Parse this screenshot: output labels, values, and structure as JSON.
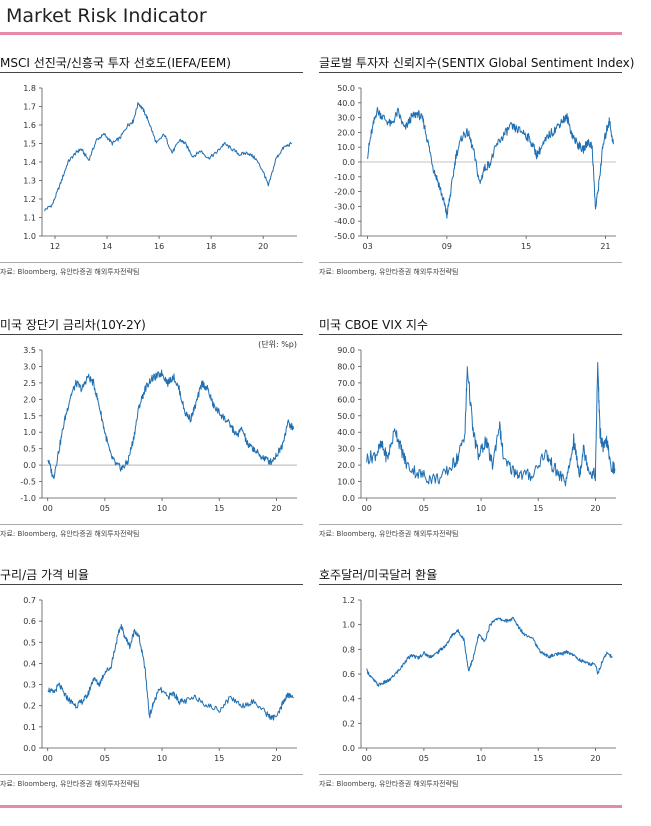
{
  "page": {
    "title": "Market Risk Indicator"
  },
  "colors": {
    "accent": "#e58aa8",
    "line": "#1f6fb2"
  },
  "panels": [
    {
      "title": "MSCI 선진국/신흥국  투자 선호도(IEFA/EEM)",
      "source": "자료: Bloomberg,  유안타증권 해외투자전략팀",
      "unit": ""
    },
    {
      "title": "글로벌 투자자 신뢰지수(SENTIX  Global Sentiment Index)",
      "source": "자료: Bloomberg,  유안타증권 해외투자전략팀",
      "unit": ""
    },
    {
      "title": "미국 장단기 금리차(10Y-2Y)",
      "source": "자료: Bloomberg,  유안타증권 해외투자전략팀",
      "unit": "(단위: %p)"
    },
    {
      "title": "미국 CBOE VIX 지수",
      "source": "자료: Bloomberg,  유안타증권 해외투자전략팀",
      "unit": ""
    },
    {
      "title": "구리/금 가격 비율",
      "source": "자료: Bloomberg,  유안타증권 해외투자전략팀",
      "unit": ""
    },
    {
      "title": "호주달러/미국달러  환율",
      "source": "자료: Bloomberg,  유안타증권 해외투자전략팀",
      "unit": ""
    }
  ],
  "chart_data": [
    {
      "type": "line",
      "xlim": [
        2011.5,
        2021.3
      ],
      "ylim": [
        1.0,
        1.8
      ],
      "yticks": [
        1.0,
        1.1,
        1.2,
        1.3,
        1.4,
        1.5,
        1.6,
        1.7,
        1.8
      ],
      "ytick_labels": [
        "1.0",
        "1.1",
        "1.2",
        "1.3",
        "1.4",
        "1.5",
        "1.6",
        "1.7",
        "1.8"
      ],
      "xticks": [
        2012,
        2014,
        2016,
        2018,
        2020
      ],
      "xtick_labels": [
        "12",
        "14",
        "16",
        "18",
        "20"
      ],
      "x": [
        2011.6,
        2011.9,
        2012.2,
        2012.5,
        2012.8,
        2013.0,
        2013.3,
        2013.6,
        2013.9,
        2014.2,
        2014.5,
        2014.8,
        2015.0,
        2015.2,
        2015.4,
        2015.6,
        2015.9,
        2016.2,
        2016.5,
        2016.8,
        2017.0,
        2017.3,
        2017.6,
        2017.9,
        2018.2,
        2018.5,
        2018.8,
        2019.1,
        2019.4,
        2019.7,
        2020.0,
        2020.2,
        2020.5,
        2020.8,
        2021.1
      ],
      "y": [
        1.14,
        1.17,
        1.28,
        1.4,
        1.45,
        1.47,
        1.41,
        1.52,
        1.55,
        1.5,
        1.53,
        1.6,
        1.62,
        1.72,
        1.68,
        1.62,
        1.5,
        1.55,
        1.45,
        1.52,
        1.5,
        1.43,
        1.46,
        1.42,
        1.45,
        1.5,
        1.47,
        1.44,
        1.45,
        1.42,
        1.35,
        1.27,
        1.42,
        1.48,
        1.5
      ]
    },
    {
      "type": "line",
      "xlim": [
        2002.5,
        2021.8
      ],
      "ylim": [
        -50,
        50
      ],
      "yticks": [
        50,
        40,
        30,
        20,
        10,
        0,
        -10,
        -20,
        -30,
        -40,
        -50
      ],
      "ytick_labels": [
        "50.0",
        "40.0",
        "30.0",
        "20.0",
        "10.0",
        "0.0",
        "-10.0",
        "-20.0",
        "-30.0",
        "-40.0",
        "-50.0"
      ],
      "xticks": [
        2003,
        2009,
        2015,
        2021
      ],
      "xtick_labels": [
        "03",
        "09",
        "15",
        "21"
      ],
      "x": [
        2003.0,
        2003.3,
        2003.7,
        2004.2,
        2004.8,
        2005.3,
        2005.8,
        2006.3,
        2006.8,
        2007.2,
        2007.6,
        2008.0,
        2008.4,
        2008.8,
        2009.0,
        2009.3,
        2009.7,
        2010.2,
        2010.6,
        2011.0,
        2011.5,
        2011.8,
        2012.3,
        2012.8,
        2013.3,
        2013.8,
        2014.3,
        2014.8,
        2015.3,
        2015.8,
        2016.2,
        2016.7,
        2017.2,
        2017.7,
        2018.1,
        2018.5,
        2018.9,
        2019.3,
        2019.7,
        2020.0,
        2020.25,
        2020.5,
        2020.8,
        2021.1,
        2021.3,
        2021.6
      ],
      "y": [
        5,
        20,
        35,
        30,
        25,
        34,
        22,
        30,
        33,
        28,
        12,
        -5,
        -15,
        -28,
        -36,
        -20,
        5,
        18,
        20,
        8,
        -15,
        -5,
        0,
        12,
        18,
        24,
        22,
        20,
        15,
        5,
        10,
        18,
        22,
        28,
        30,
        18,
        12,
        8,
        14,
        10,
        -32,
        -15,
        10,
        22,
        28,
        12
      ]
    },
    {
      "type": "line",
      "xlim": [
        1999.5,
        2021.8
      ],
      "ylim": [
        -1.0,
        3.5
      ],
      "yticks": [
        3.5,
        3.0,
        2.5,
        2.0,
        1.5,
        1.0,
        0.5,
        0.0,
        -0.5,
        -1.0
      ],
      "ytick_labels": [
        "3.5",
        "3.0",
        "2.5",
        "2.0",
        "1.5",
        "1.0",
        "0.5",
        "0.0",
        "-0.5",
        "-1.0"
      ],
      "xticks": [
        2000,
        2005,
        2010,
        2015,
        2020
      ],
      "xtick_labels": [
        "00",
        "05",
        "10",
        "15",
        "20"
      ],
      "x": [
        2000.0,
        2000.5,
        2001.0,
        2001.5,
        2002.0,
        2002.5,
        2003.0,
        2003.5,
        2004.0,
        2004.5,
        2005.0,
        2005.5,
        2006.0,
        2006.5,
        2007.0,
        2007.5,
        2008.0,
        2008.5,
        2009.0,
        2009.5,
        2010.0,
        2010.5,
        2011.0,
        2011.5,
        2012.0,
        2012.5,
        2013.0,
        2013.5,
        2014.0,
        2014.5,
        2015.0,
        2015.5,
        2016.0,
        2016.5,
        2017.0,
        2017.5,
        2018.0,
        2018.5,
        2019.0,
        2019.5,
        2020.0,
        2020.5,
        2021.0,
        2021.5
      ],
      "y": [
        0.2,
        -0.4,
        0.5,
        1.4,
        2.1,
        2.5,
        2.3,
        2.7,
        2.5,
        1.8,
        1.0,
        0.3,
        0.0,
        -0.1,
        0.1,
        0.8,
        1.8,
        2.3,
        2.6,
        2.7,
        2.8,
        2.5,
        2.7,
        2.3,
        1.6,
        1.4,
        1.9,
        2.5,
        2.3,
        1.8,
        1.6,
        1.4,
        1.2,
        0.9,
        1.1,
        0.6,
        0.5,
        0.3,
        0.2,
        0.1,
        0.3,
        0.6,
        1.3,
        1.1
      ]
    },
    {
      "type": "line",
      "xlim": [
        1999.5,
        2021.8
      ],
      "ylim": [
        0,
        90
      ],
      "yticks": [
        90,
        80,
        70,
        60,
        50,
        40,
        30,
        20,
        10,
        0
      ],
      "ytick_labels": [
        "90.0",
        "80.0",
        "70.0",
        "60.0",
        "50.0",
        "40.0",
        "30.0",
        "20.0",
        "10.0",
        "0.0"
      ],
      "xticks": [
        2000,
        2005,
        2010,
        2015,
        2020
      ],
      "xtick_labels": [
        "00",
        "05",
        "10",
        "15",
        "20"
      ],
      "x": [
        2000.0,
        2000.7,
        2001.3,
        2001.8,
        2002.5,
        2003.0,
        2003.5,
        2004.5,
        2005.5,
        2006.5,
        2007.5,
        2008.0,
        2008.6,
        2008.8,
        2009.3,
        2009.8,
        2010.4,
        2011.0,
        2011.6,
        2012.0,
        2012.8,
        2013.5,
        2014.5,
        2015.6,
        2016.2,
        2016.8,
        2017.5,
        2018.1,
        2018.6,
        2018.95,
        2019.5,
        2020.0,
        2020.2,
        2020.4,
        2020.7,
        2021.0,
        2021.3,
        2021.7
      ],
      "y": [
        24,
        26,
        32,
        24,
        42,
        30,
        20,
        15,
        12,
        12,
        20,
        25,
        40,
        80,
        40,
        25,
        35,
        20,
        45,
        22,
        17,
        14,
        14,
        28,
        20,
        14,
        10,
        35,
        14,
        30,
        16,
        14,
        82,
        40,
        30,
        35,
        20,
        18
      ]
    },
    {
      "type": "line",
      "xlim": [
        1999.5,
        2021.8
      ],
      "ylim": [
        0.0,
        0.7
      ],
      "yticks": [
        0.7,
        0.6,
        0.5,
        0.4,
        0.3,
        0.2,
        0.1,
        0.0
      ],
      "ytick_labels": [
        "0.7",
        "0.6",
        "0.5",
        "0.4",
        "0.3",
        "0.2",
        "0.1",
        "0.0"
      ],
      "xticks": [
        2000,
        2005,
        2010,
        2015,
        2020
      ],
      "xtick_labels": [
        "00",
        "05",
        "10",
        "15",
        "20"
      ],
      "x": [
        2000.0,
        2000.5,
        2001.0,
        2001.5,
        2002.0,
        2002.5,
        2003.0,
        2003.5,
        2004.0,
        2004.5,
        2005.0,
        2005.5,
        2006.0,
        2006.4,
        2006.8,
        2007.2,
        2007.6,
        2008.0,
        2008.5,
        2008.9,
        2009.3,
        2009.8,
        2010.5,
        2011.0,
        2011.5,
        2012.0,
        2013.0,
        2014.0,
        2015.0,
        2016.0,
        2017.0,
        2018.0,
        2019.0,
        2019.6,
        2020.2,
        2020.6,
        2021.0,
        2021.5
      ],
      "y": [
        0.28,
        0.26,
        0.3,
        0.25,
        0.22,
        0.2,
        0.22,
        0.25,
        0.33,
        0.3,
        0.36,
        0.38,
        0.5,
        0.58,
        0.52,
        0.48,
        0.56,
        0.52,
        0.38,
        0.15,
        0.22,
        0.28,
        0.24,
        0.26,
        0.22,
        0.22,
        0.24,
        0.2,
        0.18,
        0.24,
        0.2,
        0.22,
        0.17,
        0.14,
        0.16,
        0.22,
        0.25,
        0.24
      ]
    },
    {
      "type": "line",
      "xlim": [
        1999.5,
        2021.8
      ],
      "ylim": [
        0.0,
        1.2
      ],
      "yticks": [
        1.2,
        1.0,
        0.8,
        0.6,
        0.4,
        0.2,
        0.0
      ],
      "ytick_labels": [
        "1.2",
        "1.0",
        "0.8",
        "0.6",
        "0.4",
        "0.2",
        "0.0"
      ],
      "xticks": [
        2000,
        2005,
        2010,
        2015,
        2020
      ],
      "xtick_labels": [
        "00",
        "05",
        "10",
        "15",
        "20"
      ],
      "x": [
        2000.0,
        2000.5,
        2001.0,
        2001.5,
        2002.0,
        2002.5,
        2003.0,
        2003.5,
        2004.0,
        2004.5,
        2005.0,
        2005.5,
        2006.0,
        2006.5,
        2007.0,
        2007.5,
        2008.0,
        2008.5,
        2008.9,
        2009.3,
        2009.8,
        2010.3,
        2010.8,
        2011.3,
        2011.8,
        2012.3,
        2012.8,
        2013.3,
        2013.8,
        2014.5,
        2015.0,
        2015.5,
        2016.0,
        2016.5,
        2017.0,
        2017.5,
        2018.0,
        2018.5,
        2019.0,
        2019.5,
        2020.0,
        2020.2,
        2020.6,
        2021.0,
        2021.5
      ],
      "y": [
        0.63,
        0.56,
        0.51,
        0.53,
        0.55,
        0.6,
        0.65,
        0.72,
        0.75,
        0.73,
        0.77,
        0.74,
        0.76,
        0.8,
        0.84,
        0.92,
        0.95,
        0.88,
        0.63,
        0.72,
        0.92,
        0.86,
        1.0,
        1.05,
        1.04,
        1.03,
        1.05,
        0.98,
        0.92,
        0.9,
        0.8,
        0.76,
        0.74,
        0.76,
        0.76,
        0.78,
        0.76,
        0.72,
        0.7,
        0.68,
        0.68,
        0.6,
        0.7,
        0.77,
        0.74
      ]
    }
  ]
}
